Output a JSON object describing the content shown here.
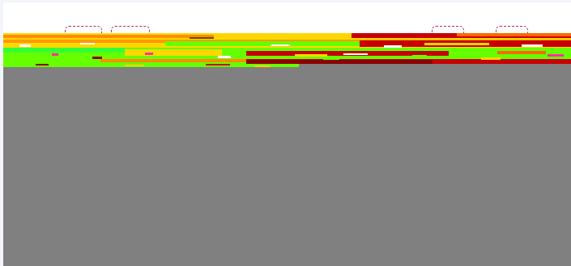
{
  "colors": {
    "frame": "#f2f5fa",
    "topbar": "#ffffff",
    "viewport": "#808080",
    "glitch_red": "#c80000",
    "glitch_dark_red": "#8b0000",
    "glitch_orange": "#ff8c00",
    "glitch_yellow": "#ffd700",
    "glitch_green": "#66ff00",
    "glitch_bright_green": "#33ff33",
    "tab_outline": "#b03060"
  }
}
